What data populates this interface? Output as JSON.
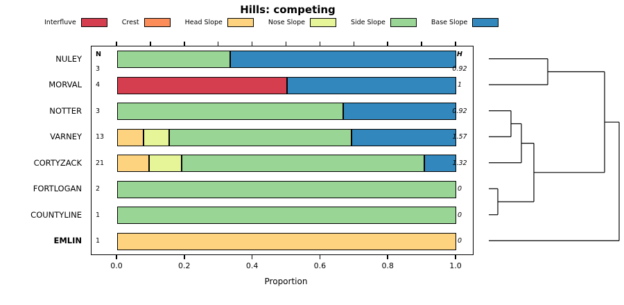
{
  "title": "Hills: competing",
  "chart_data": {
    "type": "bar",
    "variant": "horizontal-stacked-proportion-with-dendrogram",
    "title": "Hills: competing",
    "xlabel": "Proportion",
    "xlim": [
      0,
      1
    ],
    "grid": false,
    "legend_position": "top",
    "x_ticks": [
      {
        "pos": 0.0,
        "label": "0.0"
      },
      {
        "pos": 0.2,
        "label": "0.2"
      },
      {
        "pos": 0.4,
        "label": "0.4"
      },
      {
        "pos": 0.6,
        "label": "0.6"
      },
      {
        "pos": 0.8,
        "label": "0.8"
      },
      {
        "pos": 1.0,
        "label": "1.0"
      }
    ],
    "x_minor_ticks": [
      0,
      0.1,
      0.2,
      0.3,
      0.4,
      0.5,
      0.6,
      0.7,
      0.8,
      0.9,
      1.0
    ],
    "classes": [
      "Interfluve",
      "Crest",
      "Head Slope",
      "Nose Slope",
      "Side Slope",
      "Base Slope"
    ],
    "colors": {
      "Interfluve": "#d53e4f",
      "Crest": "#fc8d59",
      "Head Slope": "#fdd380",
      "Nose Slope": "#e6f598",
      "Side Slope": "#99d594",
      "Base Slope": "#3288bd"
    },
    "n_header": "N",
    "h_header": "H",
    "rows": [
      {
        "name": "NULEY",
        "n": "3",
        "h": "0.92",
        "bold": false,
        "segments": [
          {
            "class": "Side Slope",
            "from": 0,
            "to": 0.333
          },
          {
            "class": "Base Slope",
            "from": 0.333,
            "to": 1
          }
        ]
      },
      {
        "name": "MORVAL",
        "n": "4",
        "h": "1",
        "bold": false,
        "segments": [
          {
            "class": "Interfluve",
            "from": 0,
            "to": 0.5
          },
          {
            "class": "Base Slope",
            "from": 0.5,
            "to": 1
          }
        ]
      },
      {
        "name": "NOTTER",
        "n": "3",
        "h": "0.92",
        "bold": false,
        "segments": [
          {
            "class": "Side Slope",
            "from": 0,
            "to": 0.667
          },
          {
            "class": "Base Slope",
            "from": 0.667,
            "to": 1
          }
        ]
      },
      {
        "name": "VARNEY",
        "n": "13",
        "h": "1.57",
        "bold": false,
        "segments": [
          {
            "class": "Head Slope",
            "from": 0,
            "to": 0.077
          },
          {
            "class": "Nose Slope",
            "from": 0.077,
            "to": 0.154
          },
          {
            "class": "Side Slope",
            "from": 0.154,
            "to": 0.692
          },
          {
            "class": "Base Slope",
            "from": 0.692,
            "to": 1
          }
        ]
      },
      {
        "name": "CORTYZACK",
        "n": "21",
        "h": "1.32",
        "bold": false,
        "segments": [
          {
            "class": "Head Slope",
            "from": 0,
            "to": 0.095
          },
          {
            "class": "Nose Slope",
            "from": 0.095,
            "to": 0.19
          },
          {
            "class": "Side Slope",
            "from": 0.19,
            "to": 0.905
          },
          {
            "class": "Base Slope",
            "from": 0.905,
            "to": 1
          }
        ]
      },
      {
        "name": "FORTLOGAN",
        "n": "2",
        "h": "0",
        "bold": false,
        "segments": [
          {
            "class": "Side Slope",
            "from": 0,
            "to": 1
          }
        ]
      },
      {
        "name": "COUNTYLINE",
        "n": "1",
        "h": "0",
        "bold": false,
        "segments": [
          {
            "class": "Side Slope",
            "from": 0,
            "to": 1
          }
        ]
      },
      {
        "name": "EMLIN",
        "n": "1",
        "h": "0",
        "bold": true,
        "segments": [
          {
            "class": "Head Slope",
            "from": 0,
            "to": 1
          }
        ]
      }
    ],
    "dendrogram": {
      "segments": [
        [
          5,
          18.75,
          90,
          18.75
        ],
        [
          5,
          56.25,
          90,
          56.25
        ],
        [
          90,
          18.75,
          90,
          56.25
        ],
        [
          90,
          37.5,
          172,
          37.5
        ],
        [
          5,
          93.75,
          37,
          93.75
        ],
        [
          5,
          131.25,
          37,
          131.25
        ],
        [
          37,
          93.75,
          37,
          131.25
        ],
        [
          37,
          112.5,
          52,
          112.5
        ],
        [
          5,
          168.75,
          52,
          168.75
        ],
        [
          52,
          112.5,
          52,
          168.75
        ],
        [
          52,
          140.6,
          70,
          140.6
        ],
        [
          5,
          206.25,
          18,
          206.25
        ],
        [
          5,
          243.75,
          18,
          243.75
        ],
        [
          18,
          206.25,
          18,
          243.75
        ],
        [
          18,
          225,
          70,
          225
        ],
        [
          70,
          140.6,
          70,
          225
        ],
        [
          70,
          182.8,
          172,
          182.8
        ],
        [
          172,
          37.5,
          172,
          182.8
        ],
        [
          172,
          110.2,
          193,
          110.2
        ],
        [
          5,
          281.25,
          193,
          281.25
        ],
        [
          193,
          110.2,
          193,
          281.25
        ]
      ]
    }
  }
}
